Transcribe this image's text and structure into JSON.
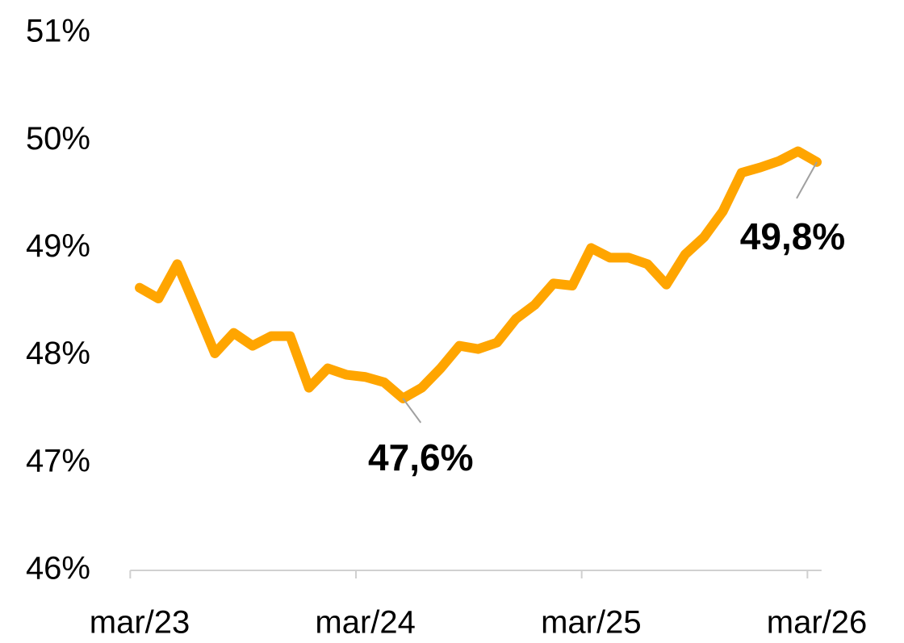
{
  "chart_data": {
    "type": "line",
    "categories": [
      "mar/23",
      null,
      null,
      null,
      null,
      null,
      null,
      null,
      null,
      null,
      null,
      null,
      "mar/24",
      null,
      null,
      null,
      null,
      null,
      null,
      null,
      null,
      null,
      null,
      null,
      "mar/25",
      null,
      null,
      null,
      null,
      null,
      null,
      null,
      null,
      null,
      null,
      null,
      "mar/26"
    ],
    "series": [
      {
        "color": "#FFA500",
        "values": [
          48.63,
          48.53,
          48.85,
          48.44,
          48.02,
          48.21,
          48.09,
          48.18,
          48.18,
          47.7,
          47.88,
          47.82,
          47.8,
          47.75,
          47.6,
          47.7,
          47.88,
          48.09,
          48.06,
          48.12,
          48.34,
          48.47,
          48.67,
          48.65,
          49.0,
          48.91,
          48.91,
          48.85,
          48.66,
          48.94,
          49.1,
          49.34,
          49.7,
          49.75,
          49.81,
          49.9,
          49.8
        ],
        "value_labels": [
          null,
          null,
          null,
          null,
          null,
          null,
          null,
          null,
          null,
          null,
          null,
          null,
          null,
          null,
          "47,6%",
          null,
          null,
          null,
          null,
          null,
          null,
          null,
          null,
          null,
          null,
          null,
          null,
          null,
          null,
          null,
          null,
          null,
          null,
          null,
          null,
          null,
          "49,8%"
        ]
      }
    ],
    "ylim": [
      46,
      51
    ],
    "yticks": [
      {
        "value": 46,
        "label": "46%"
      },
      {
        "value": 47,
        "label": "47%"
      },
      {
        "value": 48,
        "label": "48%"
      },
      {
        "value": 49,
        "label": "49%"
      },
      {
        "value": 50,
        "label": "50%"
      },
      {
        "value": 51,
        "label": "51%"
      }
    ],
    "grid": false
  }
}
